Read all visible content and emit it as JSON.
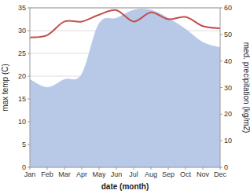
{
  "chart_data": {
    "type": "line",
    "x_label": "date (month)",
    "y_label": "max temp (C)",
    "y2_label": "med. precipitation (kg/m2)",
    "categories": [
      "Jan",
      "Feb",
      "Mar",
      "Apr",
      "May",
      "Jun",
      "Jul",
      "Aug",
      "Sep",
      "Oct",
      "Nov",
      "Dec"
    ],
    "series": [
      {
        "type": "area",
        "color": "#b8c9e8",
        "values": [
          19.25,
          17.5,
          19.25,
          20.4,
          31.5,
          32.7,
          34.5,
          34.5,
          32.7,
          30.3,
          27.4,
          26.25
        ]
      },
      {
        "type": "line",
        "color": "#c0504d",
        "values": [
          28.5,
          29.0,
          32.0,
          32.0,
          33.5,
          34.5,
          32.0,
          34.0,
          32.5,
          33.0,
          31.0,
          30.5
        ]
      }
    ],
    "ylim": [
      0,
      35
    ],
    "yticks": [
      0,
      5,
      10,
      15,
      20,
      25,
      30,
      35
    ],
    "y2lim": [
      0,
      60
    ],
    "y2ticks": [
      0,
      10,
      20,
      30,
      40,
      50,
      60
    ],
    "grid": true
  }
}
